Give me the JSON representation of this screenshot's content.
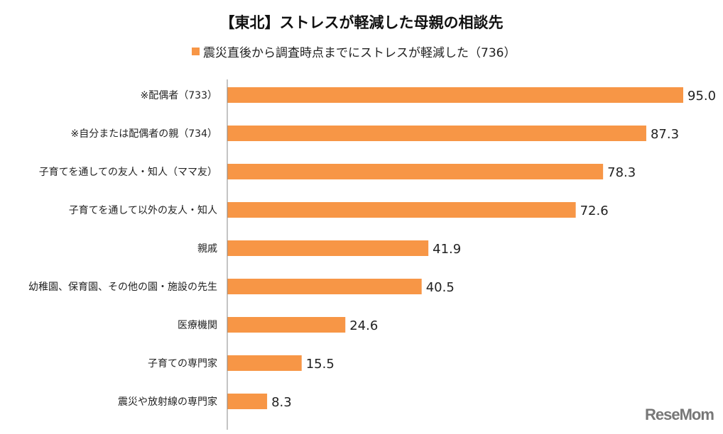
{
  "chart_data": {
    "type": "bar",
    "orientation": "horizontal",
    "title": "【東北】ストレスが軽減した母親の相談先",
    "legend_position": "top",
    "categories": [
      "※配偶者（733）",
      "※自分または配偶者の親（734）",
      "子育てを通しての友人・知人（ママ友）",
      "子育てを通して以外の友人・知人",
      "親戚",
      "幼稚園、保育園、その他の園・施設の先生",
      "医療機関",
      "子育ての専門家",
      "震災や放射線の専門家"
    ],
    "series": [
      {
        "name": "震災直後から調査時点までにストレスが軽減した（736）",
        "color": "#F79646",
        "values": [
          95.0,
          87.3,
          78.3,
          72.6,
          41.9,
          40.5,
          24.6,
          15.5,
          8.3
        ]
      }
    ],
    "xlim": [
      0,
      100
    ],
    "grid": false,
    "data_labels": true
  },
  "watermark": "ReseMom"
}
